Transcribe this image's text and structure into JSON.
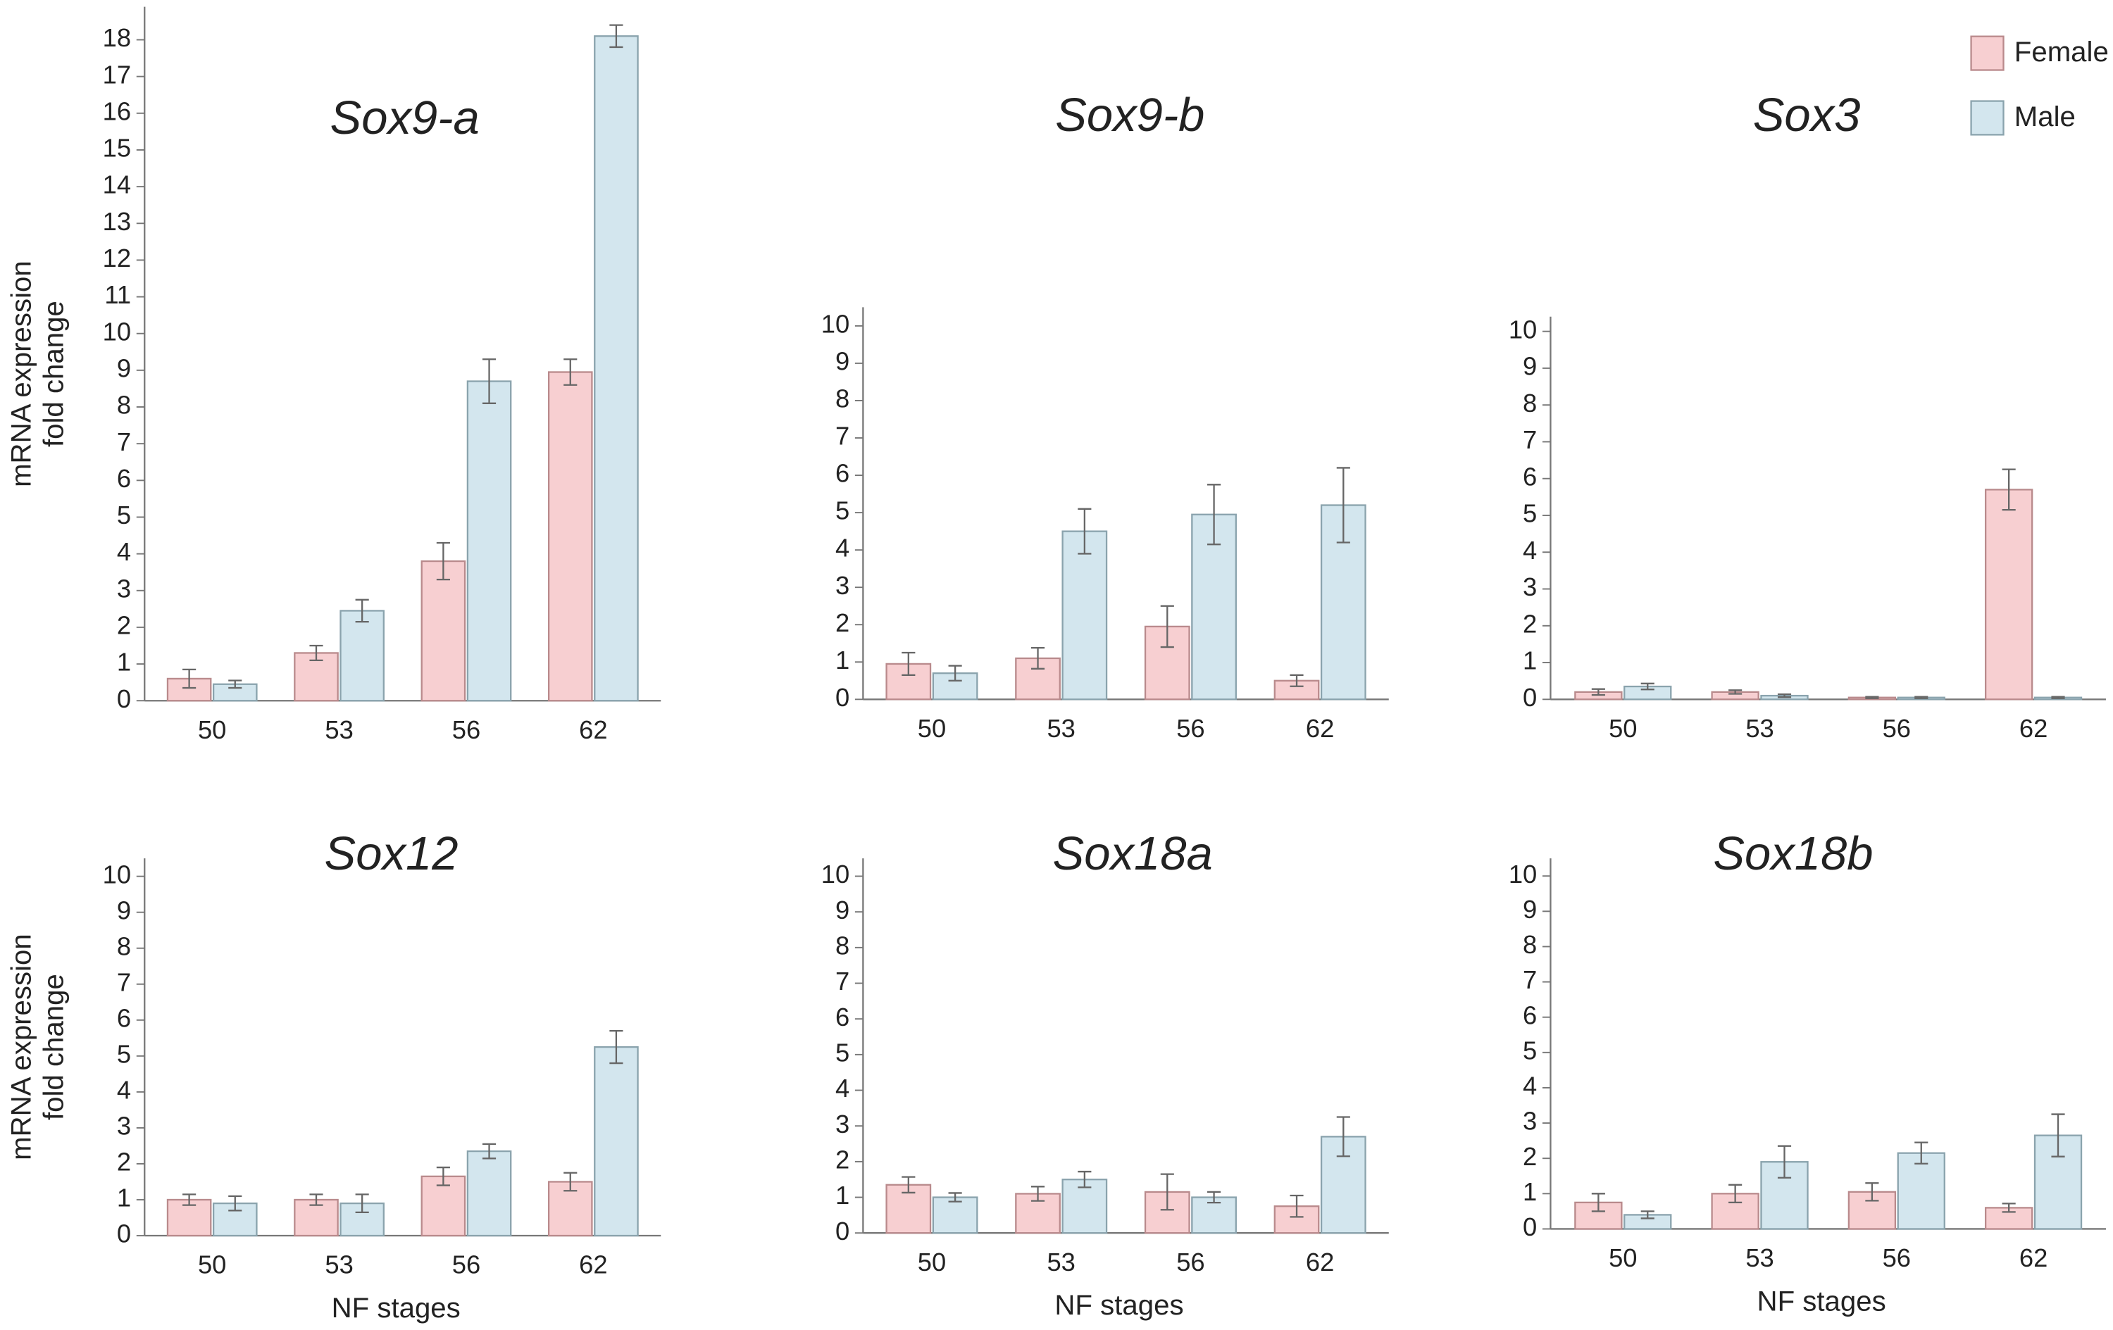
{
  "chart_data": [
    {
      "type": "bar",
      "title": "Sox9-a",
      "categories": [
        "50",
        "53",
        "56",
        "62"
      ],
      "ylabel": [
        "mRNA expression",
        "fold change"
      ],
      "series": [
        {
          "name": "Female",
          "color": "#f7cfd1",
          "values": [
            0.6,
            1.3,
            3.8,
            8.95
          ],
          "errors": [
            0.25,
            0.2,
            0.5,
            0.35
          ]
        },
        {
          "name": "Male",
          "color": "#d3e6ee",
          "values": [
            0.45,
            2.45,
            8.7,
            18.1
          ],
          "errors": [
            0.1,
            0.3,
            0.6,
            0.3
          ]
        }
      ],
      "ylim": [
        0,
        18.9
      ],
      "yticks": [
        0,
        1,
        2,
        3,
        4,
        5,
        6,
        7,
        8,
        9,
        10,
        11,
        12,
        13,
        14,
        15,
        16,
        17,
        18
      ]
    },
    {
      "type": "bar",
      "title": "Sox9-b",
      "categories": [
        "50",
        "53",
        "56",
        "62"
      ],
      "series": [
        {
          "name": "Female",
          "color": "#f7cfd1",
          "values": [
            0.95,
            1.1,
            1.95,
            0.5
          ],
          "errors": [
            0.3,
            0.28,
            0.55,
            0.15
          ]
        },
        {
          "name": "Male",
          "color": "#d3e6ee",
          "values": [
            0.7,
            4.5,
            4.95,
            5.2
          ],
          "errors": [
            0.2,
            0.6,
            0.8,
            1.0
          ]
        }
      ],
      "ylim": [
        0,
        10.5
      ],
      "yticks": [
        0,
        1,
        2,
        3,
        4,
        5,
        6,
        7,
        8,
        9,
        10
      ]
    },
    {
      "type": "bar",
      "title": "Sox3",
      "categories": [
        "50",
        "53",
        "56",
        "62"
      ],
      "series": [
        {
          "name": "Female",
          "color": "#f7cfd1",
          "values": [
            0.2,
            0.2,
            0.05,
            5.7
          ],
          "errors": [
            0.08,
            0.05,
            0.02,
            0.55
          ]
        },
        {
          "name": "Male",
          "color": "#d3e6ee",
          "values": [
            0.35,
            0.1,
            0.05,
            0.05
          ],
          "errors": [
            0.08,
            0.04,
            0.02,
            0.02
          ]
        }
      ],
      "ylim": [
        0,
        10.4
      ],
      "yticks": [
        0,
        1,
        2,
        3,
        4,
        5,
        6,
        7,
        8,
        9,
        10
      ]
    },
    {
      "type": "bar",
      "title": "Sox12",
      "categories": [
        "50",
        "53",
        "56",
        "62"
      ],
      "ylabel": [
        "mRNA expression",
        "fold change"
      ],
      "xlabel": "NF stages",
      "series": [
        {
          "name": "Female",
          "color": "#f7cfd1",
          "values": [
            1.0,
            1.0,
            1.65,
            1.5
          ],
          "errors": [
            0.15,
            0.15,
            0.25,
            0.25
          ]
        },
        {
          "name": "Male",
          "color": "#d3e6ee",
          "values": [
            0.9,
            0.9,
            2.35,
            5.25
          ],
          "errors": [
            0.2,
            0.25,
            0.2,
            0.45
          ]
        }
      ],
      "ylim": [
        0,
        10.5
      ],
      "yticks": [
        0,
        1,
        2,
        3,
        4,
        5,
        6,
        7,
        8,
        9,
        10
      ]
    },
    {
      "type": "bar",
      "title": "Sox18a",
      "categories": [
        "50",
        "53",
        "56",
        "62"
      ],
      "xlabel": "NF stages",
      "series": [
        {
          "name": "Female",
          "color": "#f7cfd1",
          "values": [
            1.35,
            1.1,
            1.15,
            0.75
          ],
          "errors": [
            0.22,
            0.2,
            0.5,
            0.3
          ]
        },
        {
          "name": "Male",
          "color": "#d3e6ee",
          "values": [
            1.0,
            1.5,
            1.0,
            2.7
          ],
          "errors": [
            0.12,
            0.22,
            0.15,
            0.55
          ]
        }
      ],
      "ylim": [
        0,
        10.5
      ],
      "yticks": [
        0,
        1,
        2,
        3,
        4,
        5,
        6,
        7,
        8,
        9,
        10
      ]
    },
    {
      "type": "bar",
      "title": "Sox18b",
      "categories": [
        "50",
        "53",
        "56",
        "62"
      ],
      "xlabel": "NF stages",
      "series": [
        {
          "name": "Female",
          "color": "#f7cfd1",
          "values": [
            0.75,
            1.0,
            1.05,
            0.6
          ],
          "errors": [
            0.25,
            0.25,
            0.25,
            0.12
          ]
        },
        {
          "name": "Male",
          "color": "#d3e6ee",
          "values": [
            0.4,
            1.9,
            2.15,
            2.65
          ],
          "errors": [
            0.1,
            0.45,
            0.3,
            0.6
          ]
        }
      ],
      "ylim": [
        0,
        10.5
      ],
      "yticks": [
        0,
        1,
        2,
        3,
        4,
        5,
        6,
        7,
        8,
        9,
        10
      ]
    }
  ]
}
